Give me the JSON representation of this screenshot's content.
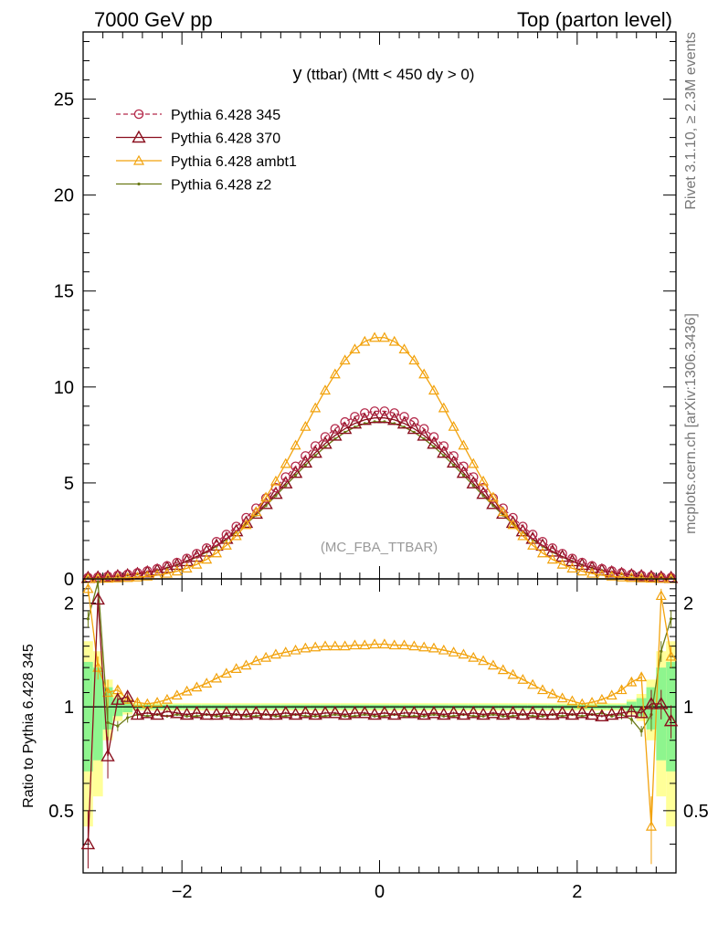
{
  "header": {
    "left": "7000 GeV pp",
    "right": "Top (parton level)"
  },
  "side_labels": {
    "rivet": "Rivet 3.1.10, ≥ 2.3M events",
    "mcplots": "mcplots.cern.ch [arXiv:1306.3436]"
  },
  "colors": {
    "p345": "#b4294a",
    "p370": "#8a0f1e",
    "ambt1": "#f2a20c",
    "z2": "#6b7a16",
    "band_green": "#8ef58e",
    "band_yellow": "#ffff99"
  },
  "chart_data": [
    {
      "type": "line",
      "title": "y (ttbar) (Mtt < 450 dy > 0)",
      "title_main": "y",
      "title_rest": "(ttbar) (Mtt < 450 dy > 0)",
      "annotation": "(MC_FBA_TTBAR)",
      "xlim": [
        -3.0,
        3.0
      ],
      "ylim": [
        0,
        28.5
      ],
      "yticks": [
        0,
        5,
        10,
        15,
        20,
        25
      ],
      "ytick_labels": [
        "0",
        "5",
        "10",
        "15",
        "20",
        "25"
      ],
      "legend_position": "top-left",
      "series": [
        {
          "name": "Pythia 6.428 345",
          "key": "p345",
          "peak": 8.75,
          "sigma": 0.95,
          "marker": "circle",
          "dashed": true
        },
        {
          "name": "Pythia 6.428 370",
          "key": "p370",
          "peak": 8.4,
          "sigma": 0.93,
          "marker": "triangle-big",
          "dashed": false
        },
        {
          "name": "Pythia 6.428 ambt1",
          "key": "ambt1",
          "peak": 12.6,
          "sigma": 0.78,
          "marker": "triangle",
          "dashed": false
        },
        {
          "name": "Pythia 6.428 z2",
          "key": "z2",
          "peak": 8.2,
          "sigma": 0.93,
          "marker": "dot",
          "dashed": false
        }
      ],
      "x": [
        -2.95,
        -2.85,
        -2.75,
        -2.65,
        -2.55,
        -2.45,
        -2.35,
        -2.25,
        -2.15,
        -2.05,
        -1.95,
        -1.85,
        -1.75,
        -1.65,
        -1.55,
        -1.45,
        -1.35,
        -1.25,
        -1.15,
        -1.05,
        -0.95,
        -0.85,
        -0.75,
        -0.65,
        -0.55,
        -0.45,
        -0.35,
        -0.25,
        -0.15,
        -0.05,
        0.05,
        0.15,
        0.25,
        0.35,
        0.45,
        0.55,
        0.65,
        0.75,
        0.85,
        0.95,
        1.05,
        1.15,
        1.25,
        1.35,
        1.45,
        1.55,
        1.65,
        1.75,
        1.85,
        1.95,
        2.05,
        2.15,
        2.25,
        2.35,
        2.45,
        2.55,
        2.65,
        2.75,
        2.85,
        2.95
      ]
    },
    {
      "type": "line",
      "ylabel": "Ratio to Pythia 6.428 345",
      "xlim": [
        -3.0,
        3.0
      ],
      "ylim": [
        0.33,
        2.35
      ],
      "scale": "log",
      "xticks": [
        -2,
        0,
        2
      ],
      "xtick_labels": [
        "−2",
        "0",
        "2"
      ],
      "yticks": [
        0.5,
        1,
        2
      ],
      "ytick_labels": [
        "0.5",
        "1",
        "2"
      ],
      "ratio_370": [
        0.4,
        2.05,
        0.72,
        1.05,
        1.07,
        0.95,
        0.96,
        0.95,
        0.97,
        0.96,
        0.95,
        0.96,
        0.95,
        0.95,
        0.96,
        0.95,
        0.95,
        0.96,
        0.95,
        0.95,
        0.96,
        0.95,
        0.96,
        0.95,
        0.96,
        0.96,
        0.95,
        0.96,
        0.96,
        0.95,
        0.96,
        0.95,
        0.96,
        0.96,
        0.95,
        0.96,
        0.95,
        0.96,
        0.95,
        0.96,
        0.95,
        0.96,
        0.95,
        0.96,
        0.95,
        0.96,
        0.95,
        0.95,
        0.96,
        0.95,
        0.96,
        0.95,
        0.94,
        0.95,
        0.96,
        0.97,
        0.96,
        1.02,
        1.02,
        0.91
      ],
      "ratio_ambt1": [
        2.2,
        1.3,
        1.1,
        1.12,
        1.05,
        1.03,
        1.02,
        1.03,
        1.05,
        1.08,
        1.11,
        1.14,
        1.17,
        1.21,
        1.25,
        1.29,
        1.32,
        1.36,
        1.39,
        1.42,
        1.44,
        1.46,
        1.48,
        1.49,
        1.5,
        1.5,
        1.5,
        1.51,
        1.51,
        1.52,
        1.52,
        1.51,
        1.51,
        1.5,
        1.49,
        1.48,
        1.46,
        1.44,
        1.42,
        1.39,
        1.36,
        1.32,
        1.28,
        1.24,
        1.2,
        1.16,
        1.12,
        1.09,
        1.06,
        1.04,
        1.02,
        1.03,
        1.05,
        1.08,
        1.12,
        1.18,
        1.22,
        0.45,
        2.1,
        1.4
      ],
      "ratio_z2": [
        1.8,
        2.3,
        0.9,
        0.88,
        0.93,
        0.95,
        0.94,
        0.95,
        0.94,
        0.95,
        0.94,
        0.94,
        0.95,
        0.94,
        0.94,
        0.95,
        0.94,
        0.94,
        0.95,
        0.94,
        0.94,
        0.95,
        0.94,
        0.94,
        0.94,
        0.95,
        0.94,
        0.94,
        0.95,
        0.94,
        0.94,
        0.95,
        0.94,
        0.94,
        0.94,
        0.95,
        0.94,
        0.94,
        0.95,
        0.94,
        0.94,
        0.95,
        0.94,
        0.94,
        0.95,
        0.94,
        0.94,
        0.95,
        0.94,
        0.95,
        0.94,
        0.95,
        0.96,
        0.94,
        0.95,
        0.92,
        0.85,
        0.95,
        1.45,
        1.8
      ]
    }
  ]
}
